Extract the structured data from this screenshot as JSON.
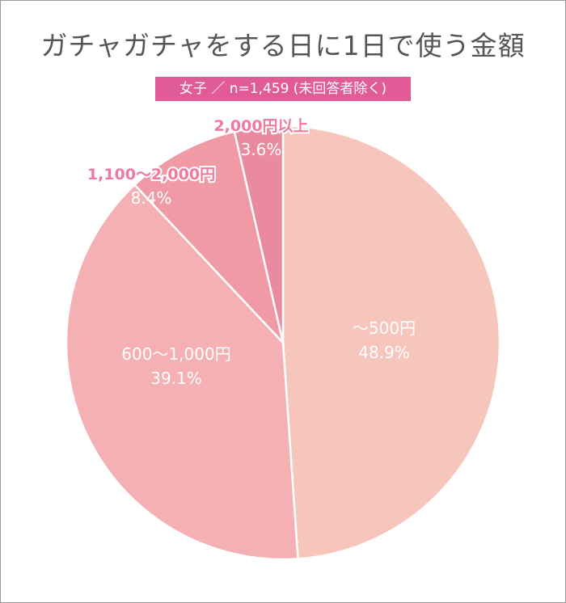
{
  "chart_data": {
    "type": "pie",
    "title": "ガチャガチャをする日に1日で使う金額",
    "subtitle": "女子 ／ n=1,459 (未回答者除く)",
    "unit": "%",
    "start_angle_deg": 0,
    "direction": "clockwise",
    "slices": [
      {
        "label": "～500円",
        "value": 48.9,
        "value_label": "48.9%",
        "color": "#f6c5bc"
      },
      {
        "label": "600～1,000円",
        "value": 39.1,
        "value_label": "39.1%",
        "color": "#f4b0b2"
      },
      {
        "label": "1,100～2,000円",
        "value": 8.4,
        "value_label": "8.4%",
        "color": "#f09aa6"
      },
      {
        "label": "2,000円以上",
        "value": 3.6,
        "value_label": "3.6%",
        "color": "#ea8a9e"
      }
    ]
  }
}
